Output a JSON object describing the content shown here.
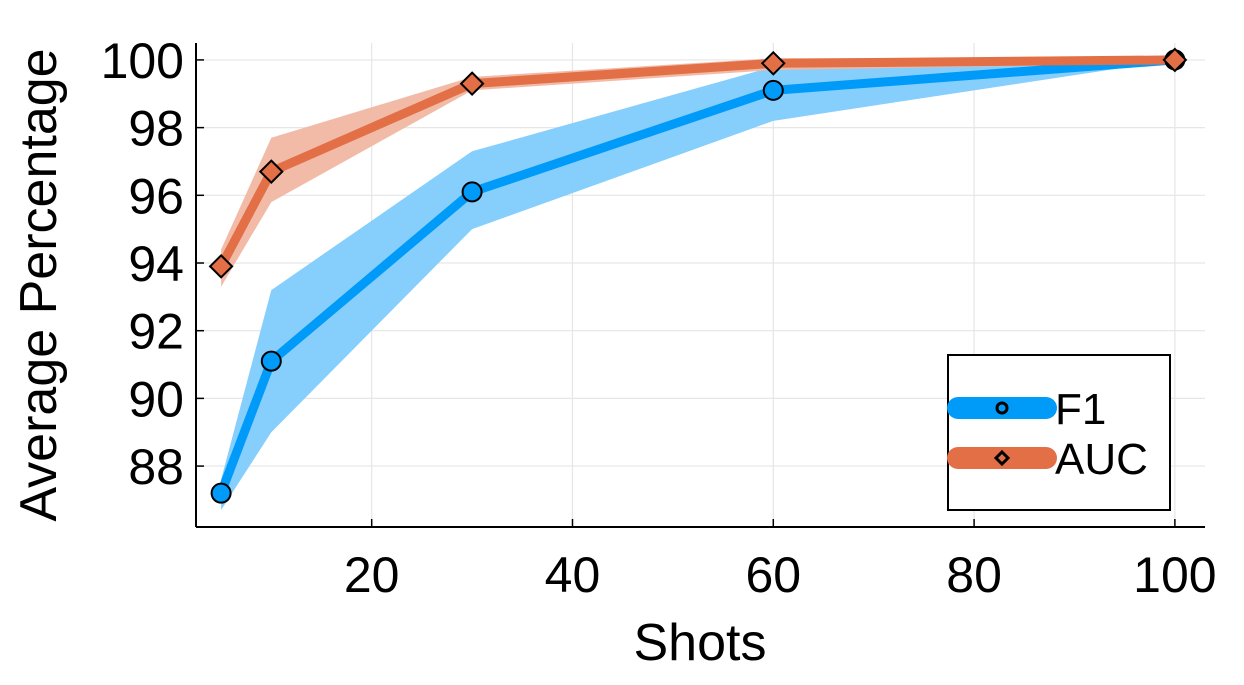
{
  "chart_data": {
    "type": "line",
    "xlabel": "Shots",
    "ylabel": "Average Percentage",
    "x": [
      5,
      10,
      30,
      60,
      100
    ],
    "xlim": [
      2.5,
      103
    ],
    "ylim": [
      86.2,
      100.5
    ],
    "xticks": [
      20,
      40,
      60,
      80,
      100
    ],
    "yticks": [
      88,
      90,
      92,
      94,
      96,
      98,
      100
    ],
    "grid": true,
    "legend_position": "bottom-right",
    "series": [
      {
        "name": "F1",
        "color": "#009af9",
        "band_color": "#80cbfc",
        "marker": "circle",
        "values": [
          87.2,
          91.1,
          96.1,
          99.1,
          100.0
        ],
        "lower": [
          86.7,
          89.0,
          95.0,
          98.2,
          100.0
        ],
        "upper": [
          87.6,
          93.2,
          97.3,
          99.8,
          100.0
        ]
      },
      {
        "name": "AUC",
        "color": "#e26f46",
        "band_color": "#f0b7a2",
        "marker": "diamond",
        "values": [
          93.9,
          96.7,
          99.3,
          99.9,
          100.0
        ],
        "lower": [
          93.3,
          95.8,
          99.1,
          99.7,
          99.9
        ],
        "upper": [
          94.4,
          97.7,
          99.5,
          100.05,
          100.05
        ]
      }
    ]
  }
}
